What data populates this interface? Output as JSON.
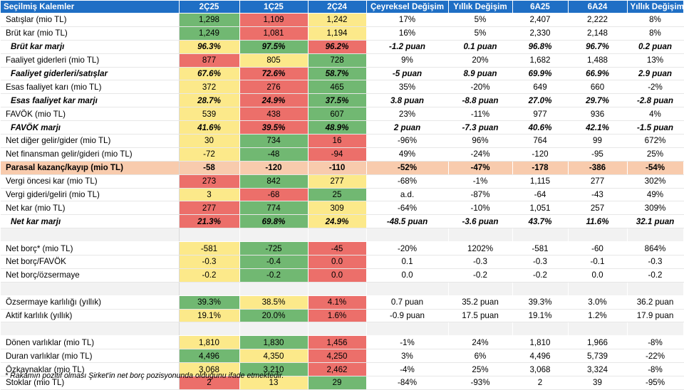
{
  "headers": [
    "Seçilmiş Kalemler",
    "2Ç25",
    "1Ç25",
    "2Ç24",
    "Çeyreksel Değişim",
    "Yıllık Değişim",
    "6A25",
    "6A24",
    "Yıllık Değişim"
  ],
  "colors": {
    "green": "#71B872",
    "yellow": "#FCE98A",
    "red": "#EC6F6A",
    "header": "#1F6FC5",
    "highlight": "#F8CBAD"
  },
  "rows": [
    {
      "type": "row",
      "label": "Satışlar (mio TL)",
      "v": [
        "1,298",
        "1,109",
        "1,242"
      ],
      "c": [
        "g",
        "r",
        "y"
      ],
      "e": [
        "17%",
        "5%",
        "2,407",
        "2,222",
        "8%"
      ]
    },
    {
      "type": "row",
      "label": "Brüt kar (mio TL)",
      "v": [
        "1,249",
        "1,081",
        "1,194"
      ],
      "c": [
        "g",
        "r",
        "y"
      ],
      "e": [
        "16%",
        "5%",
        "2,330",
        "2,148",
        "8%"
      ]
    },
    {
      "type": "bi",
      "label": "Brüt kar marjı",
      "v": [
        "96.3%",
        "97.5%",
        "96.2%"
      ],
      "c": [
        "y",
        "g",
        "r"
      ],
      "e": [
        "-1.2 puan",
        "0.1 puan",
        "96.8%",
        "96.7%",
        "0.2 puan"
      ]
    },
    {
      "type": "row",
      "label": "Faaliyet giderleri (mio TL)",
      "v": [
        "877",
        "805",
        "728"
      ],
      "c": [
        "r",
        "y",
        "g"
      ],
      "e": [
        "9%",
        "20%",
        "1,682",
        "1,488",
        "13%"
      ]
    },
    {
      "type": "bi",
      "label": "Faaliyet giderleri/satışlar",
      "v": [
        "67.6%",
        "72.6%",
        "58.7%"
      ],
      "c": [
        "y",
        "r",
        "g"
      ],
      "e": [
        "-5 puan",
        "8.9 puan",
        "69.9%",
        "66.9%",
        "2.9 puan"
      ]
    },
    {
      "type": "row",
      "label": "Esas faaliyet karı (mio TL)",
      "v": [
        "372",
        "276",
        "465"
      ],
      "c": [
        "y",
        "r",
        "g"
      ],
      "e": [
        "35%",
        "-20%",
        "649",
        "660",
        "-2%"
      ]
    },
    {
      "type": "bi",
      "label": "Esas faaliyet kar marjı",
      "v": [
        "28.7%",
        "24.9%",
        "37.5%"
      ],
      "c": [
        "y",
        "r",
        "g"
      ],
      "e": [
        "3.8 puan",
        "-8.8 puan",
        "27.0%",
        "29.7%",
        "-2.8 puan"
      ]
    },
    {
      "type": "row",
      "label": "FAVÖK (mio TL)",
      "v": [
        "539",
        "438",
        "607"
      ],
      "c": [
        "y",
        "r",
        "g"
      ],
      "e": [
        "23%",
        "-11%",
        "977",
        "936",
        "4%"
      ]
    },
    {
      "type": "bi",
      "label": "FAVÖK marjı",
      "v": [
        "41.6%",
        "39.5%",
        "48.9%"
      ],
      "c": [
        "y",
        "r",
        "g"
      ],
      "e": [
        "2 puan",
        "-7.3 puan",
        "40.6%",
        "42.1%",
        "-1.5 puan"
      ]
    },
    {
      "type": "row",
      "label": "Net diğer gelir/gider (mio TL)",
      "v": [
        "30",
        "734",
        "16"
      ],
      "c": [
        "y",
        "g",
        "r"
      ],
      "e": [
        "-96%",
        "96%",
        "764",
        "99",
        "672%"
      ]
    },
    {
      "type": "row",
      "label": "Net finansman gelir/gideri (mio TL)",
      "v": [
        "-72",
        "-48",
        "-94"
      ],
      "c": [
        "y",
        "g",
        "r"
      ],
      "e": [
        "49%",
        "-24%",
        "-120",
        "-95",
        "25%"
      ]
    },
    {
      "type": "hl",
      "label": "Parasal kazanç/kayıp (mio TL)",
      "v": [
        "-58",
        "-120",
        "-110"
      ],
      "c": [
        "",
        "",
        ""
      ],
      "e": [
        "-52%",
        "-47%",
        "-178",
        "-386",
        "-54%"
      ]
    },
    {
      "type": "row",
      "label": "Vergi öncesi kar (mio TL)",
      "v": [
        "273",
        "842",
        "277"
      ],
      "c": [
        "r",
        "g",
        "y"
      ],
      "e": [
        "-68%",
        "-1%",
        "1,115",
        "277",
        "302%"
      ]
    },
    {
      "type": "row",
      "label": "Vergi gideri/geliri (mio TL)",
      "v": [
        "3",
        "-68",
        "25"
      ],
      "c": [
        "y",
        "r",
        "g"
      ],
      "e": [
        "a.d.",
        "-87%",
        "-64",
        "-43",
        "49%"
      ]
    },
    {
      "type": "row",
      "label": "Net kar (mio TL)",
      "v": [
        "277",
        "774",
        "309"
      ],
      "c": [
        "r",
        "g",
        "y"
      ],
      "e": [
        "-64%",
        "-10%",
        "1,051",
        "257",
        "309%"
      ]
    },
    {
      "type": "bi",
      "label": "Net kar marjı",
      "v": [
        "21.3%",
        "69.8%",
        "24.9%"
      ],
      "c": [
        "r",
        "g",
        "y"
      ],
      "e": [
        "-48.5 puan",
        "-3.6 puan",
        "43.7%",
        "11.6%",
        "32.1 puan"
      ]
    },
    {
      "type": "gap"
    },
    {
      "type": "row",
      "label": "Net borç* (mio TL)",
      "v": [
        "-581",
        "-725",
        "-45"
      ],
      "c": [
        "y",
        "g",
        "r"
      ],
      "e": [
        "-20%",
        "1202%",
        "-581",
        "-60",
        "864%"
      ]
    },
    {
      "type": "row",
      "label": "Net borç/FAVÖK",
      "v": [
        "-0.3",
        "-0.4",
        "0.0"
      ],
      "c": [
        "y",
        "g",
        "r"
      ],
      "e": [
        "0.1",
        "-0.3",
        "-0.3",
        "-0.1",
        "-0.3"
      ]
    },
    {
      "type": "row",
      "label": "Net borç/özsermaye",
      "v": [
        "-0.2",
        "-0.2",
        "0.0"
      ],
      "c": [
        "y",
        "g",
        "r"
      ],
      "e": [
        "0.0",
        "-0.2",
        "-0.2",
        "0.0",
        "-0.2"
      ]
    },
    {
      "type": "gap"
    },
    {
      "type": "row",
      "label": "Özsermaye karlılığı (yıllık)",
      "v": [
        "39.3%",
        "38.5%",
        "4.1%"
      ],
      "c": [
        "g",
        "y",
        "r"
      ],
      "e": [
        "0.7 puan",
        "35.2 puan",
        "39.3%",
        "3.0%",
        "36.2 puan"
      ]
    },
    {
      "type": "row",
      "label": "Aktif karlılık (yıllık)",
      "v": [
        "19.1%",
        "20.0%",
        "1.6%"
      ],
      "c": [
        "y",
        "g",
        "r"
      ],
      "e": [
        "-0.9 puan",
        "17.5 puan",
        "19.1%",
        "1.2%",
        "17.9 puan"
      ]
    },
    {
      "type": "gap"
    },
    {
      "type": "row",
      "label": "Dönen varlıklar (mio TL)",
      "v": [
        "1,810",
        "1,830",
        "1,456"
      ],
      "c": [
        "y",
        "g",
        "r"
      ],
      "e": [
        "-1%",
        "24%",
        "1,810",
        "1,966",
        "-8%"
      ]
    },
    {
      "type": "row",
      "label": "Duran varlıklar (mio TL)",
      "v": [
        "4,496",
        "4,350",
        "4,250"
      ],
      "c": [
        "g",
        "y",
        "r"
      ],
      "e": [
        "3%",
        "6%",
        "4,496",
        "5,739",
        "-22%"
      ]
    },
    {
      "type": "row",
      "label": "Özkaynaklar (mio TL)",
      "v": [
        "3,068",
        "3,210",
        "2,462"
      ],
      "c": [
        "y",
        "g",
        "r"
      ],
      "e": [
        "-4%",
        "25%",
        "3,068",
        "3,324",
        "-8%"
      ]
    },
    {
      "type": "row",
      "label": "Stoklar (mio TL)",
      "v": [
        "2",
        "13",
        "29"
      ],
      "c": [
        "r",
        "y",
        "g"
      ],
      "e": [
        "-84%",
        "-93%",
        "2",
        "39",
        "-95%"
      ]
    }
  ],
  "footnote": "* Rakamın pozitif olması Şirket'in net borç pozisyonunda olduğunu ifade etmektedir."
}
